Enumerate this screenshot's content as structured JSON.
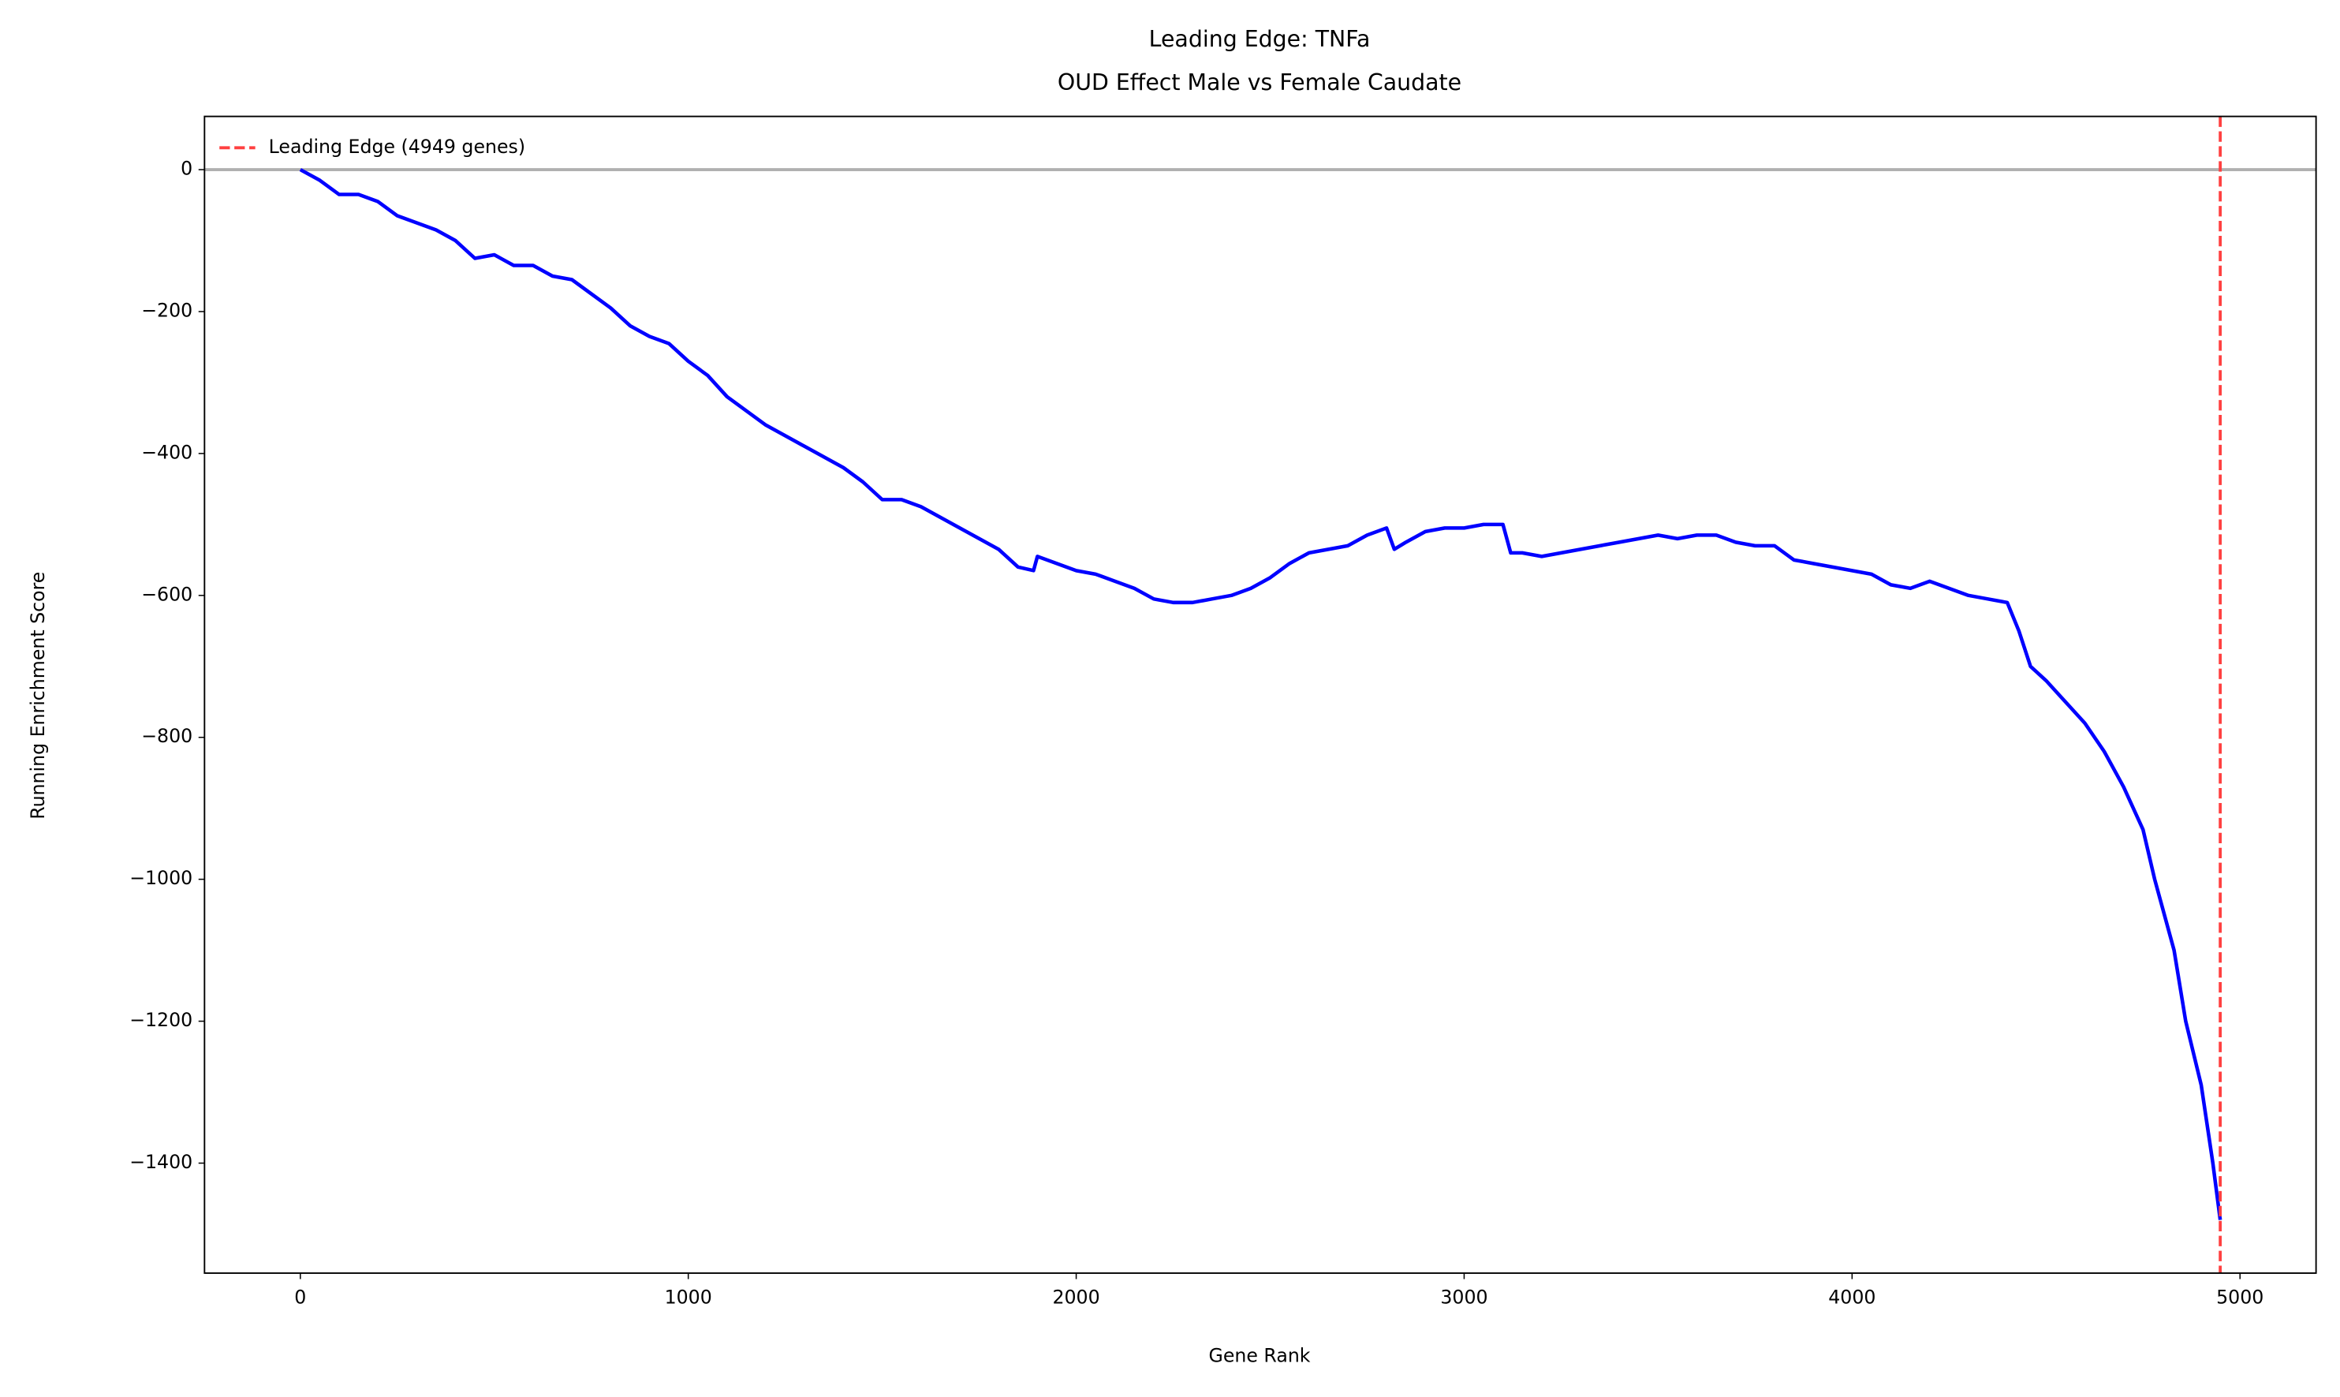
{
  "chart_data": {
    "type": "line",
    "title": "Leading Edge: TNFa",
    "subtitle": "OUD Effect Male vs Female Caudate",
    "x_label": "Gene Rank",
    "y_label": "Running Enrichment Score",
    "xlim": [
      -247,
      5196
    ],
    "ylim": [
      -1555,
      75
    ],
    "xticks": [
      0,
      1000,
      2000,
      3000,
      4000,
      5000
    ],
    "yticks": [
      0,
      {
        "value": -200,
        "label": "−200"
      },
      {
        "value": -400,
        "label": "−400"
      },
      {
        "value": -600,
        "label": "−600"
      },
      {
        "value": -800,
        "label": "−800"
      },
      {
        "value": -1000,
        "label": "−1000"
      },
      {
        "value": -1200,
        "label": "−1200"
      },
      {
        "value": -1400,
        "label": "−1400"
      }
    ],
    "hline": {
      "value": 0,
      "color": "#b0b0b0"
    },
    "vline": {
      "name": "Leading Edge (4949 genes)",
      "value": 4949,
      "color": "#ff4040"
    },
    "legend": "upper left",
    "x": [
      0,
      50,
      100,
      150,
      200,
      250,
      300,
      350,
      400,
      450,
      500,
      550,
      600,
      650,
      700,
      750,
      800,
      850,
      900,
      950,
      1000,
      1050,
      1100,
      1150,
      1200,
      1250,
      1300,
      1350,
      1400,
      1450,
      1500,
      1550,
      1600,
      1650,
      1700,
      1750,
      1800,
      1850,
      1890,
      1900,
      1950,
      2000,
      2050,
      2100,
      2150,
      2200,
      2250,
      2300,
      2350,
      2400,
      2450,
      2500,
      2550,
      2600,
      2650,
      2700,
      2750,
      2800,
      2820,
      2850,
      2900,
      2950,
      3000,
      3050,
      3100,
      3120,
      3150,
      3200,
      3250,
      3300,
      3350,
      3400,
      3450,
      3500,
      3550,
      3600,
      3650,
      3700,
      3750,
      3800,
      3850,
      3900,
      3950,
      4000,
      4050,
      4100,
      4150,
      4200,
      4250,
      4300,
      4350,
      4400,
      4430,
      4460,
      4500,
      4550,
      4600,
      4650,
      4700,
      4750,
      4780,
      4800,
      4830,
      4860,
      4900,
      4930,
      4949
    ],
    "series": [
      {
        "color": "#0000ff",
        "values": [
          0,
          -15,
          -35,
          -35,
          -45,
          -65,
          -75,
          -85,
          -100,
          -125,
          -120,
          -135,
          -135,
          -150,
          -155,
          -175,
          -195,
          -220,
          -235,
          -245,
          -270,
          -290,
          -320,
          -340,
          -360,
          -375,
          -390,
          -405,
          -420,
          -440,
          -465,
          -465,
          -475,
          -490,
          -505,
          -520,
          -535,
          -560,
          -565,
          -545,
          -555,
          -565,
          -570,
          -580,
          -590,
          -605,
          -610,
          -610,
          -605,
          -600,
          -590,
          -575,
          -555,
          -540,
          -535,
          -530,
          -515,
          -505,
          -535,
          -525,
          -510,
          -505,
          -505,
          -500,
          -500,
          -540,
          -540,
          -545,
          -540,
          -535,
          -530,
          -525,
          -520,
          -515,
          -520,
          -515,
          -515,
          -525,
          -530,
          -530,
          -550,
          -555,
          -560,
          -565,
          -570,
          -585,
          -590,
          -580,
          -590,
          -600,
          -605,
          -610,
          -650,
          -700,
          -720,
          -750,
          -780,
          -820,
          -870,
          -930,
          -1000,
          -1040,
          -1100,
          -1200,
          -1290,
          -1400,
          -1480
        ]
      }
    ]
  }
}
